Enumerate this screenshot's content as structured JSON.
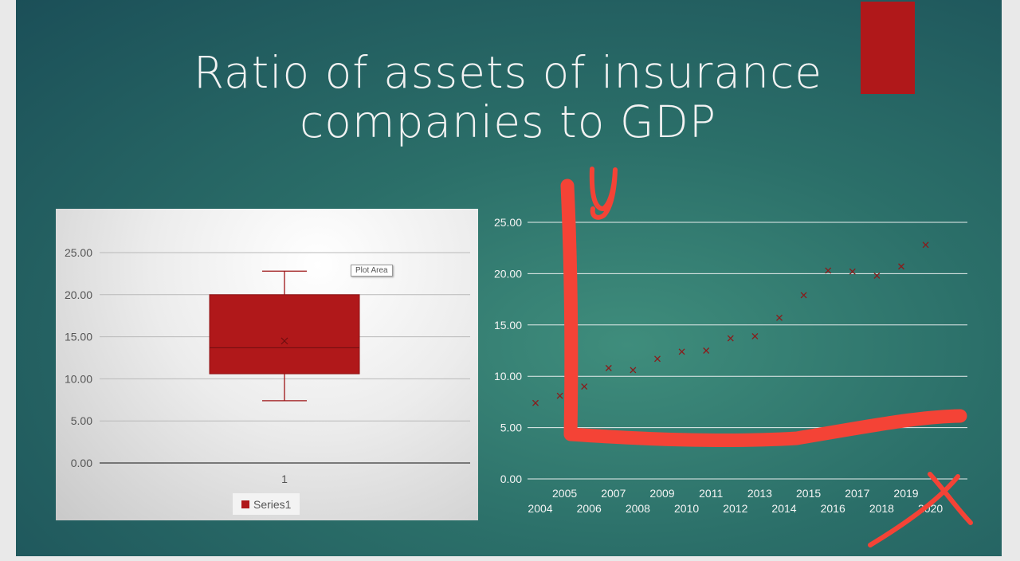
{
  "slide": {
    "title_line1": "Ratio of assets of insurance",
    "title_line2": "companies to GDP",
    "background_color": "#245f63",
    "accent_color": "#b0181a"
  },
  "annotation": {
    "handwritten_label": "y",
    "ink_color": "#f44336"
  },
  "chart_data": [
    {
      "type": "box",
      "yticks": [
        "0.00",
        "5.00",
        "10.00",
        "15.00",
        "20.00",
        "25.00"
      ],
      "ylim": [
        0,
        25
      ],
      "categories": [
        "1"
      ],
      "series": [
        {
          "name": "Series1",
          "min": 7.4,
          "q1": 10.6,
          "median": 13.7,
          "mean": 14.5,
          "q3": 20.0,
          "max": 22.8
        }
      ],
      "tooltip": "Plot Area",
      "legend": "bottom",
      "grid": true
    },
    {
      "type": "scatter",
      "yticks": [
        "0.00",
        "5.00",
        "10.00",
        "15.00",
        "20.00",
        "25.00"
      ],
      "ylim": [
        0,
        25
      ],
      "x": [
        "2004",
        "2005",
        "2006",
        "2007",
        "2008",
        "2009",
        "2010",
        "2011",
        "2012",
        "2013",
        "2014",
        "2015",
        "2016",
        "2017",
        "2018",
        "2019",
        "2020"
      ],
      "y": [
        7.4,
        8.1,
        9.0,
        10.8,
        10.6,
        11.7,
        12.4,
        12.5,
        13.7,
        13.9,
        15.7,
        17.9,
        20.3,
        20.2,
        19.8,
        20.7,
        22.8
      ],
      "marker": "x",
      "grid": true
    }
  ]
}
